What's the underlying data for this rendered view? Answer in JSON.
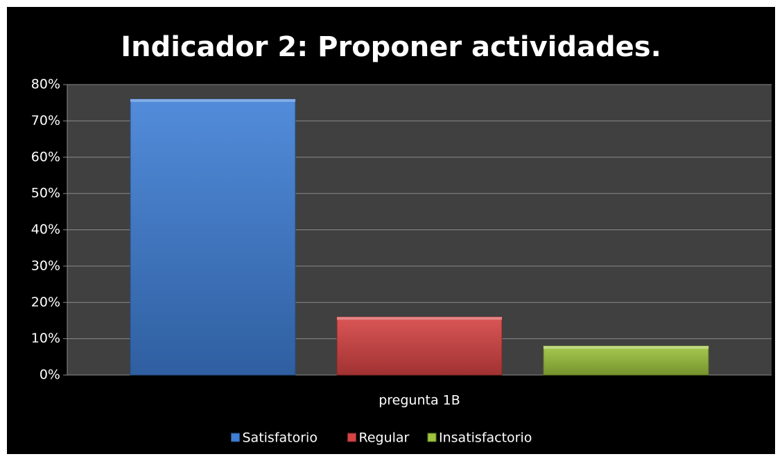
{
  "chart_data": {
    "type": "bar",
    "title": "Indicador 2: Proponer actividades.",
    "categories": [
      "pregunta 1B"
    ],
    "series": [
      {
        "name": "Satisfatorio",
        "color": "#3f7fd6",
        "values": [
          76
        ]
      },
      {
        "name": "Regular",
        "color": "#d64343",
        "values": [
          16
        ]
      },
      {
        "name": "Insatisfactorio",
        "color": "#9dc43d",
        "values": [
          8
        ]
      }
    ],
    "ylim": [
      0,
      80
    ],
    "yticks": [
      {
        "value": 0,
        "label": "0%"
      },
      {
        "value": 10,
        "label": "10%"
      },
      {
        "value": 20,
        "label": "20%"
      },
      {
        "value": 30,
        "label": "30%"
      },
      {
        "value": 40,
        "label": "40%"
      },
      {
        "value": 50,
        "label": "50%"
      },
      {
        "value": 60,
        "label": "60%"
      },
      {
        "value": 70,
        "label": "70%"
      },
      {
        "value": 80,
        "label": "80%"
      }
    ],
    "grid": true,
    "legend": "bottom"
  }
}
